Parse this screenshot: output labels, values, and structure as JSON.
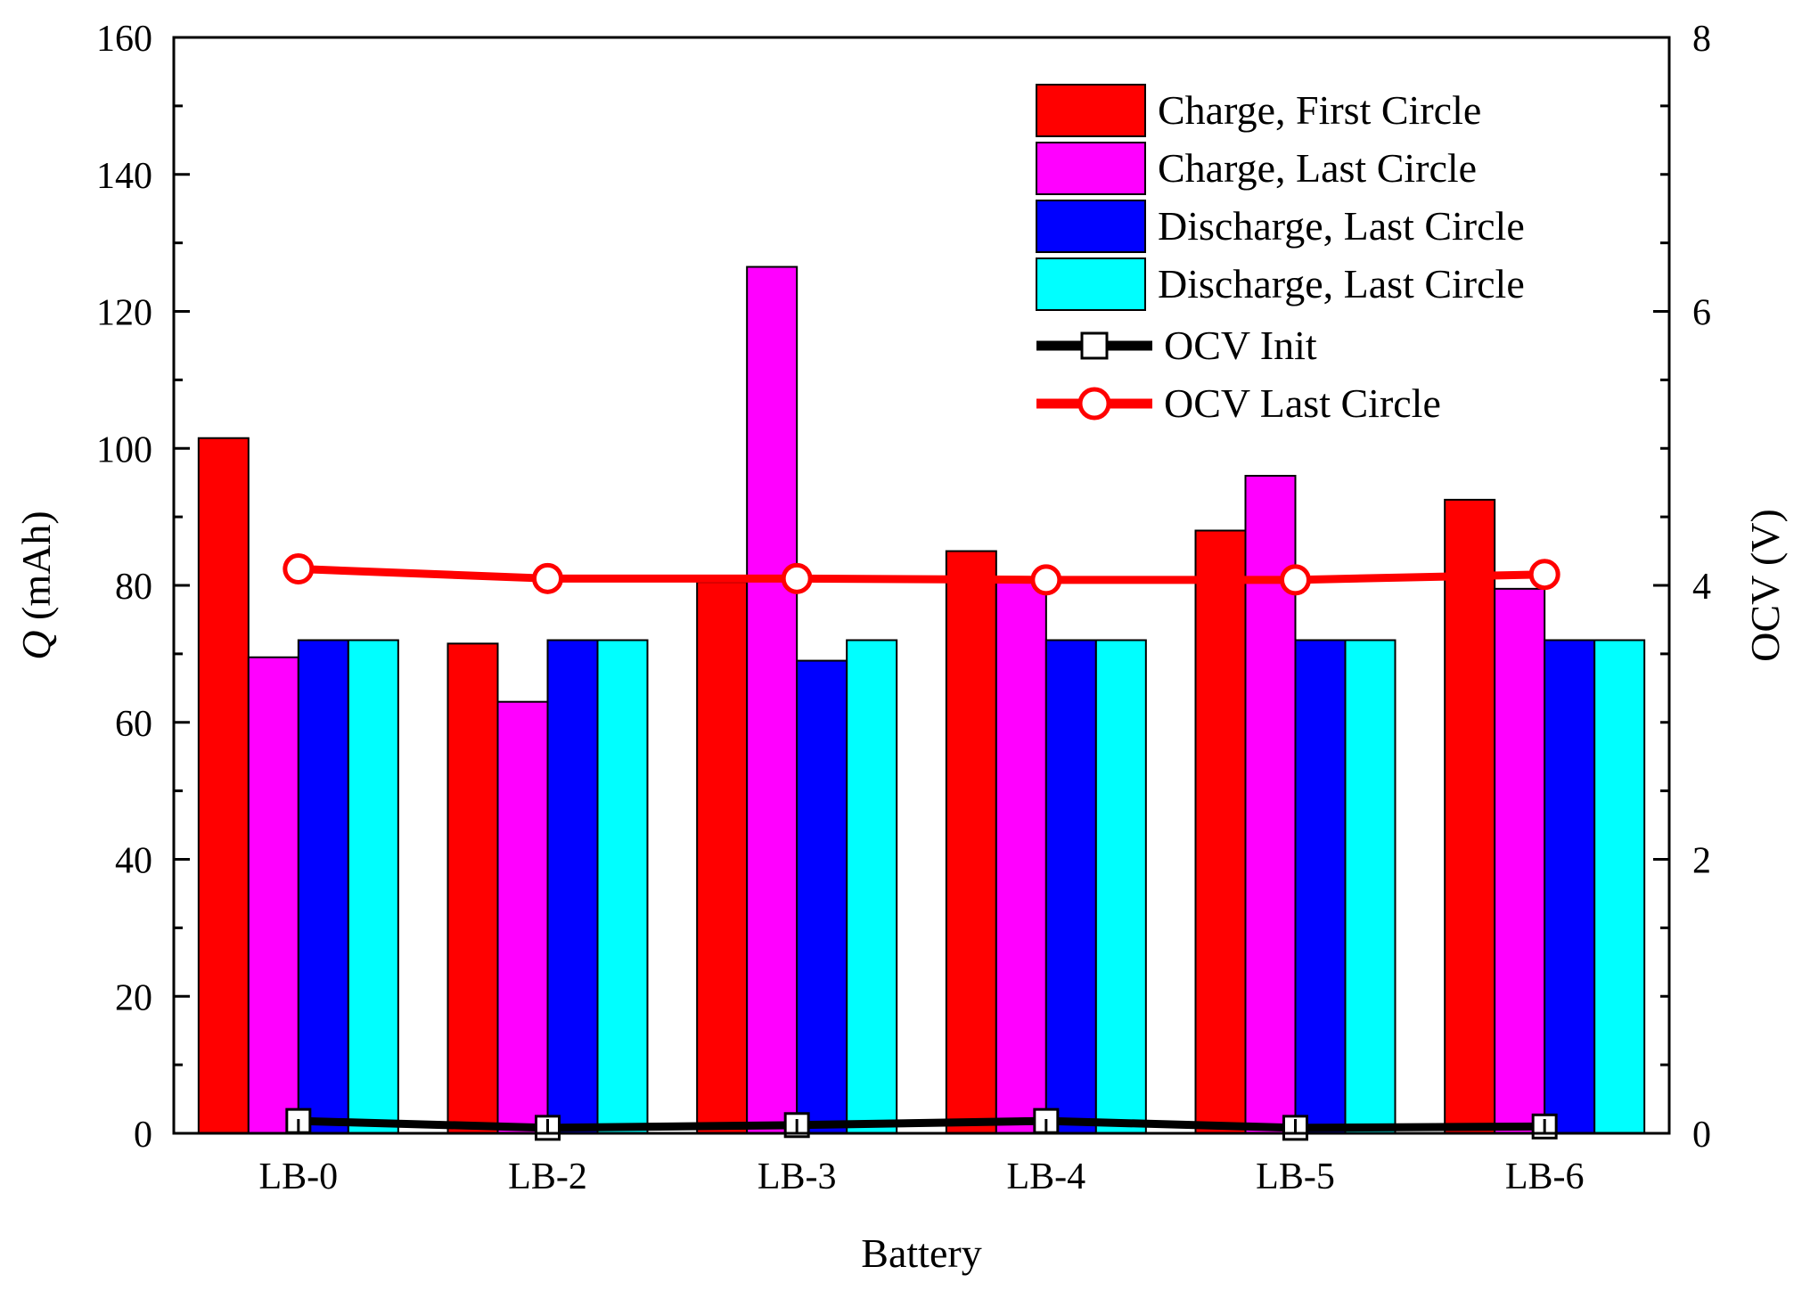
{
  "chart_data": {
    "type": "bar",
    "xlabel": "Battery",
    "ylabel_italic": "Q",
    "ylabel_rest": " (mAh)",
    "y2label": "OCV (V)",
    "categories": [
      "LB-0",
      "LB-2",
      "LB-3",
      "LB-4",
      "LB-5",
      "LB-6"
    ],
    "ylim": [
      0,
      160
    ],
    "yticks": [
      0,
      20,
      40,
      60,
      80,
      100,
      120,
      140,
      160
    ],
    "y2lim": [
      0,
      8
    ],
    "y2ticks": [
      0,
      2,
      4,
      6,
      8
    ],
    "legend_position": "top-right",
    "bar_series": [
      {
        "name": "Charge, First Circle",
        "color": "#ff0000",
        "values": [
          101.5,
          71.5,
          80.5,
          85.0,
          88.0,
          92.5
        ]
      },
      {
        "name": "Charge, Last Circle",
        "color": "#ff00ff",
        "values": [
          69.5,
          63.0,
          126.5,
          80.5,
          96.0,
          79.5
        ]
      },
      {
        "name": "Discharge, Last Circle",
        "color": "#0000ff",
        "values": [
          72.0,
          72.0,
          69.0,
          72.0,
          72.0,
          72.0
        ]
      },
      {
        "name": "Discharge, Last Circle",
        "color": "#00ffff",
        "values": [
          72.0,
          72.0,
          72.0,
          72.0,
          72.0,
          72.0
        ]
      }
    ],
    "line_series": [
      {
        "name": "OCV Init",
        "color": "#000000",
        "marker": "square",
        "values": [
          0.09,
          0.04,
          0.06,
          0.09,
          0.04,
          0.05
        ]
      },
      {
        "name": "OCV Last Circle",
        "color": "#ff0000",
        "marker": "circle",
        "values": [
          4.12,
          4.05,
          4.05,
          4.04,
          4.04,
          4.08
        ]
      }
    ]
  }
}
